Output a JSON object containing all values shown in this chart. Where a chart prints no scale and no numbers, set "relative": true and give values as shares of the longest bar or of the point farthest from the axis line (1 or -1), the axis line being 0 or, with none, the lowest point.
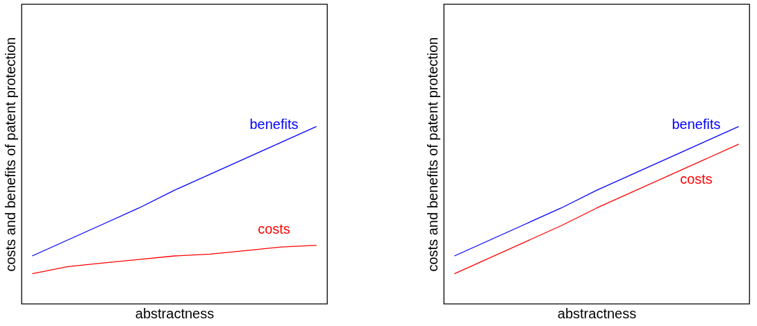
{
  "chart_data": [
    {
      "type": "line",
      "relative": true,
      "xlabel": "abstractness",
      "ylabel": "costs and benefits of patent protection",
      "categories": [
        null,
        null,
        null,
        null,
        null,
        null,
        null,
        null,
        null
      ],
      "tick_labels": false,
      "series": [
        {
          "name": "benefits",
          "color": "#0000ff",
          "values": [
            0.27,
            0.36,
            0.45,
            0.54,
            0.64,
            0.73,
            0.82,
            0.91,
            1.0
          ]
        },
        {
          "name": "costs",
          "color": "#ff0000",
          "values": [
            0.17,
            0.21,
            0.23,
            0.25,
            0.27,
            0.28,
            0.3,
            0.32,
            0.33
          ]
        }
      ]
    },
    {
      "type": "line",
      "relative": true,
      "xlabel": "abstractness",
      "ylabel": "costs and benefits of patent protection",
      "categories": [
        null,
        null,
        null,
        null,
        null,
        null,
        null,
        null,
        null
      ],
      "tick_labels": false,
      "series": [
        {
          "name": "benefits",
          "color": "#0000ff",
          "values": [
            0.27,
            0.36,
            0.45,
            0.54,
            0.64,
            0.73,
            0.82,
            0.91,
            1.0
          ]
        },
        {
          "name": "costs",
          "color": "#ff0000",
          "values": [
            0.17,
            0.26,
            0.35,
            0.44,
            0.54,
            0.63,
            0.72,
            0.81,
            0.9
          ]
        }
      ]
    }
  ]
}
